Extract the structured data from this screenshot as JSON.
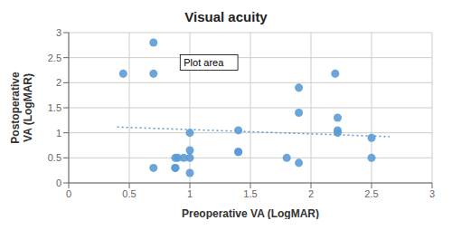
{
  "chart_data": {
    "type": "scatter",
    "title": "Visual acuity",
    "xlabel": "Preoperative VA (LogMAR)",
    "ylabel": "Postoperative\nVA (LogMAR)",
    "xlim": [
      0,
      3
    ],
    "ylim": [
      0,
      3
    ],
    "xticks": [
      0,
      0.5,
      1,
      1.5,
      2,
      2.5,
      3
    ],
    "yticks": [
      0,
      0.5,
      1,
      1.5,
      2,
      2.5,
      3
    ],
    "grid": true,
    "series": [
      {
        "type": "scatter",
        "color": "#5b9bd5",
        "marker": "circle",
        "x": [
          0.45,
          0.7,
          0.7,
          0.7,
          0.88,
          0.88,
          0.88,
          0.9,
          0.95,
          1.0,
          1.0,
          1.0,
          1.0,
          1.4,
          1.4,
          1.4,
          1.8,
          1.9,
          1.9,
          1.9,
          2.2,
          2.22,
          2.22,
          2.22,
          2.5,
          2.5
        ],
        "values": [
          2.18,
          2.18,
          2.8,
          0.3,
          0.5,
          0.3,
          0.3,
          0.5,
          0.5,
          1.0,
          0.65,
          0.5,
          0.2,
          1.05,
          0.62,
          0.62,
          0.5,
          1.9,
          1.4,
          0.4,
          2.18,
          1.3,
          1.05,
          1.0,
          0.5,
          0.9
        ]
      },
      {
        "type": "line",
        "color": "#5b9bd5",
        "line_style": "dotted",
        "x": [
          0.4,
          2.65
        ],
        "values": [
          1.115,
          0.92375
        ]
      }
    ],
    "annotations": [
      {
        "text": "Plot area",
        "x": 0.92,
        "y": 2.25
      }
    ]
  }
}
